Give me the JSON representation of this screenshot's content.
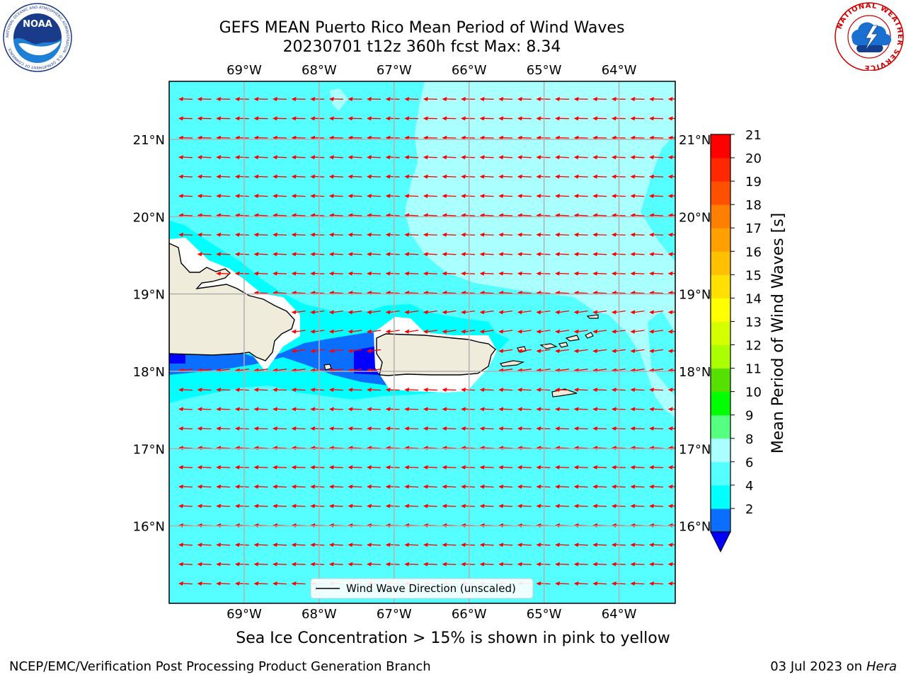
{
  "title": {
    "line1": "GEFS MEAN Puerto Rico Mean Period of Wind Waves",
    "line2": "20230701 t12z 360h fcst   Max: 8.34"
  },
  "map": {
    "lon_labels": [
      "69°W",
      "68°W",
      "67°W",
      "66°W",
      "65°W",
      "64°W"
    ],
    "lon_values": [
      -69,
      -68,
      -67,
      -66,
      -65,
      -64
    ],
    "lat_labels": [
      "21°N",
      "20°N",
      "19°N",
      "18°N",
      "17°N",
      "16°N"
    ],
    "lat_values": [
      21,
      20,
      19,
      18,
      17,
      16
    ],
    "extent": {
      "lon_min": -70.0,
      "lon_max": -63.25,
      "lat_min": 15.0,
      "lat_max": 21.75
    },
    "legend_label": "Wind Wave Direction (unscaled)",
    "arrow_color": "#ff0000",
    "land_color": "#efecdc",
    "grid_color": "#b0b0b0"
  },
  "colorbar": {
    "label": "Mean Period of Wind Waves [s]",
    "tick_labels": [
      "21",
      "20",
      "19",
      "18",
      "17",
      "16",
      "15",
      "14",
      "13",
      "12",
      "11",
      "10",
      "9",
      "8",
      "6",
      "4",
      "2"
    ],
    "levels": [
      2,
      4,
      6,
      8,
      9,
      10,
      11,
      12,
      13,
      14,
      15,
      16,
      17,
      18,
      19,
      20,
      21
    ],
    "colors": [
      "#0a6eff",
      "#00ffff",
      "#55ffff",
      "#aaffff",
      "#55ff80",
      "#00ff00",
      "#55e000",
      "#aaff00",
      "#d4ff00",
      "#ffff00",
      "#ffe000",
      "#ffc000",
      "#ffa000",
      "#ff8000",
      "#ff5000",
      "#ff2800",
      "#ff0000"
    ],
    "under_color": "#0000ff"
  },
  "caption": "Sea Ice Concentration > 15% is shown in pink to yellow",
  "footer": {
    "left": "NCEP/EMC/Verification Post Processing Product Generation Branch",
    "right_date": "03 Jul 2023 on ",
    "right_host": "Hera"
  },
  "logos": {
    "noaa_text": "NOAA",
    "noaa_ring": "NATIONAL OCEANIC AND ATMOSPHERIC ADMINISTRATION · U.S. DEPARTMENT OF COMMERCE",
    "nws_ring": "NATIONAL WEATHER SERVICE"
  }
}
